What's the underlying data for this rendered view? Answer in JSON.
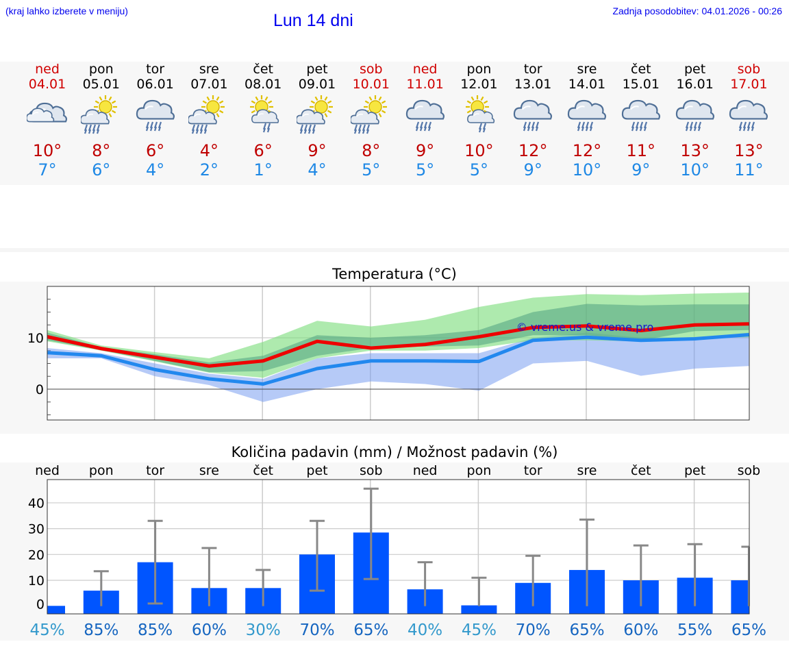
{
  "header": {
    "hint": "(kraj lahko izberete v meniju)",
    "title": "Lun 14 dni",
    "updated": "Zadnja posodobitev: 04.01.2026 - 00:26"
  },
  "days": [
    {
      "name": "ned",
      "date": "04.01",
      "weekend": true,
      "icon": "cloud",
      "tmax": "10°",
      "tmin": "7°",
      "pday": "ned",
      "prob": "45%",
      "probLight": true
    },
    {
      "name": "pon",
      "date": "05.01",
      "weekend": false,
      "icon": "sun-cloud-rain",
      "tmax": "8°",
      "tmin": "6°",
      "pday": "pon",
      "prob": "85%",
      "probLight": false
    },
    {
      "name": "tor",
      "date": "06.01",
      "weekend": false,
      "icon": "cloud-rain",
      "tmax": "6°",
      "tmin": "4°",
      "pday": "tor",
      "prob": "85%",
      "probLight": false
    },
    {
      "name": "sre",
      "date": "07.01",
      "weekend": false,
      "icon": "sun-cloud-rain",
      "tmax": "4°",
      "tmin": "2°",
      "pday": "sre",
      "prob": "60%",
      "probLight": false
    },
    {
      "name": "čet",
      "date": "08.01",
      "weekend": false,
      "icon": "sun-cloud-small-rain",
      "tmax": "6°",
      "tmin": "1°",
      "pday": "čet",
      "prob": "30%",
      "probLight": true
    },
    {
      "name": "pet",
      "date": "09.01",
      "weekend": false,
      "icon": "sun-cloud-rain",
      "tmax": "9°",
      "tmin": "4°",
      "pday": "pet",
      "prob": "70%",
      "probLight": false
    },
    {
      "name": "sob",
      "date": "10.01",
      "weekend": true,
      "icon": "sun-cloud-rain",
      "tmax": "8°",
      "tmin": "5°",
      "pday": "sob",
      "prob": "65%",
      "probLight": false
    },
    {
      "name": "ned",
      "date": "11.01",
      "weekend": true,
      "icon": "cloud-rain",
      "tmax": "9°",
      "tmin": "5°",
      "pday": "ned",
      "prob": "40%",
      "probLight": true
    },
    {
      "name": "pon",
      "date": "12.01",
      "weekend": false,
      "icon": "sun-cloud-small-rain",
      "tmax": "10°",
      "tmin": "5°",
      "pday": "pon",
      "prob": "45%",
      "probLight": true
    },
    {
      "name": "tor",
      "date": "13.01",
      "weekend": false,
      "icon": "cloud-rain",
      "tmax": "12°",
      "tmin": "9°",
      "pday": "tor",
      "prob": "70%",
      "probLight": false
    },
    {
      "name": "sre",
      "date": "14.01",
      "weekend": false,
      "icon": "cloud-rain",
      "tmax": "12°",
      "tmin": "10°",
      "pday": "sre",
      "prob": "65%",
      "probLight": false
    },
    {
      "name": "čet",
      "date": "15.01",
      "weekend": false,
      "icon": "cloud-rain",
      "tmax": "11°",
      "tmin": "9°",
      "pday": "čet",
      "prob": "60%",
      "probLight": false
    },
    {
      "name": "pet",
      "date": "16.01",
      "weekend": false,
      "icon": "cloud-rain",
      "tmax": "13°",
      "tmin": "10°",
      "pday": "pet",
      "prob": "55%",
      "probLight": false
    },
    {
      "name": "sob",
      "date": "17.01",
      "weekend": true,
      "icon": "cloud-rain",
      "tmax": "13°",
      "tmin": "11°",
      "pday": "sob",
      "prob": "65%",
      "probLight": false
    }
  ],
  "colors": {
    "maxLine": "#ee0000",
    "minLine": "#2288ee",
    "bar": "#0055ff",
    "errorBar": "#888888",
    "weekend": "#d00000",
    "probDark": "#1565c0",
    "probLight": "#3399cc"
  },
  "chart_data": [
    {
      "type": "line",
      "title": "Temperatura (°C)",
      "watermark": "© vreme.us & vreme.pro",
      "ylim": [
        -6,
        20
      ],
      "yticks": [
        0,
        10
      ],
      "ytick_labels": [
        "0",
        "10"
      ],
      "series": [
        {
          "name": "max",
          "values": [
            10.2,
            7.9,
            6.2,
            4.5,
            5.5,
            9.3,
            8.0,
            8.7,
            10.2,
            12.0,
            12.3,
            11.4,
            12.5,
            12.7
          ]
        },
        {
          "name": "min",
          "values": [
            7.1,
            6.5,
            3.8,
            2.0,
            1.0,
            4.0,
            5.5,
            5.5,
            5.4,
            9.5,
            10.1,
            9.5,
            9.8,
            10.6
          ]
        }
      ],
      "bands": [
        {
          "name": "max-range",
          "low": [
            9.3,
            7.5,
            5.4,
            3.2,
            2.2,
            6.0,
            7.5,
            7.5,
            8.0,
            9.5,
            9.5,
            9.3,
            10.0,
            10.1
          ],
          "high": [
            11.5,
            8.5,
            7.2,
            6.0,
            9.2,
            13.3,
            12.2,
            13.5,
            16.0,
            17.8,
            18.5,
            18.3,
            18.6,
            18.8
          ]
        },
        {
          "name": "max-core",
          "low": [
            9.5,
            7.6,
            5.5,
            3.3,
            3.5,
            6.5,
            8.0,
            8.3,
            8.5,
            10.5,
            10.5,
            9.5,
            11.3,
            11.5
          ],
          "high": [
            11.0,
            8.2,
            6.8,
            5.2,
            6.5,
            10.5,
            10.0,
            10.5,
            11.5,
            15.0,
            16.6,
            16.3,
            16.5,
            16.5
          ]
        },
        {
          "name": "min-range",
          "low": [
            6.0,
            6.0,
            2.5,
            0.8,
            -2.5,
            0.0,
            1.5,
            1.0,
            -0.3,
            5.0,
            5.5,
            2.6,
            4.0,
            4.5
          ],
          "high": [
            8.0,
            7.0,
            5.0,
            3.0,
            2.0,
            6.0,
            7.0,
            7.0,
            7.0,
            10.0,
            11.0,
            10.0,
            10.0,
            11.0
          ]
        },
        {
          "name": "min-core",
          "low": [
            6.5,
            6.2,
            3.0,
            1.5,
            1.5,
            2.5,
            4.5,
            5.0,
            4.5,
            7.5,
            7.5,
            6.5,
            6.5,
            6.5
          ],
          "high": [
            7.5,
            6.8,
            4.5,
            2.5,
            2.5,
            5.0,
            6.0,
            6.0,
            6.0,
            9.5,
            10.5,
            10.0,
            10.0,
            10.5
          ]
        }
      ]
    },
    {
      "type": "bar",
      "title": "Količina padavin (mm) / Možnost padavin (%)",
      "ylim": [
        -3,
        49
      ],
      "yticks": [
        0,
        10,
        20,
        30,
        40
      ],
      "ytick_labels": [
        "0",
        "10",
        "20",
        "30",
        "40"
      ],
      "values": [
        0.1,
        6.0,
        17.0,
        7.0,
        7.0,
        20.0,
        28.5,
        6.5,
        0.3,
        9.0,
        14.0,
        10.0,
        11.0,
        10.0
      ],
      "error_low": [
        0,
        0,
        1.0,
        0,
        0,
        6.0,
        10.5,
        0,
        0,
        0,
        0,
        0,
        0,
        0
      ],
      "error_high": [
        0,
        13.5,
        33.0,
        22.5,
        14.0,
        33.0,
        45.5,
        17.0,
        11.0,
        19.5,
        33.5,
        23.5,
        24.0,
        23.0
      ]
    }
  ]
}
